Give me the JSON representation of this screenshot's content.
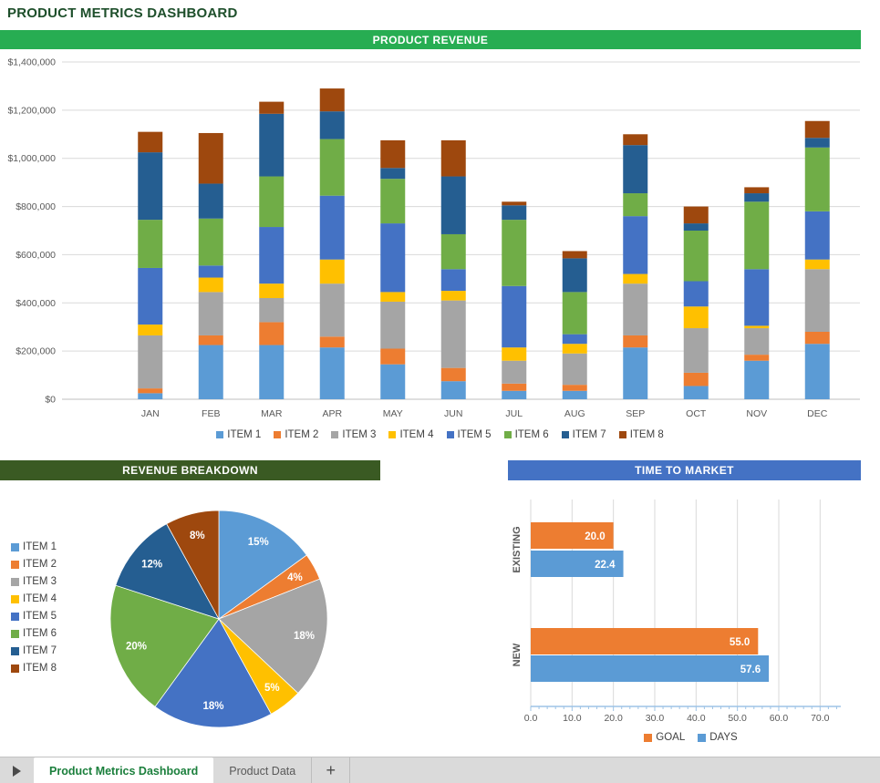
{
  "title": "PRODUCT METRICS DASHBOARD",
  "banners": {
    "revenue": "PRODUCT REVENUE",
    "breakdown": "REVENUE BREAKDOWN",
    "market": "TIME TO MARKET"
  },
  "colors": {
    "title_text": "#1E4F2B",
    "revenue_banner_bg": "#27AD52",
    "breakdown_banner_bg": "#3A5A23",
    "market_banner_bg": "#4472C4",
    "banner_text": "#FFFFFF",
    "axis_text": "#595959",
    "legend_text": "#404040",
    "gridline": "#D9D9D9",
    "axis_line": "#BFBFBF",
    "market_axis_line": "#9DC3E6",
    "data_label_text": "#FFFFFF",
    "active_tab_text": "#1B7F3C",
    "inactive_tab_text": "#595959"
  },
  "items": [
    {
      "label": "ITEM 1",
      "color": "#5B9BD5"
    },
    {
      "label": "ITEM 2",
      "color": "#ED7D31"
    },
    {
      "label": "ITEM 3",
      "color": "#A5A5A5"
    },
    {
      "label": "ITEM 4",
      "color": "#FFC000"
    },
    {
      "label": "ITEM 5",
      "color": "#4472C4"
    },
    {
      "label": "ITEM 6",
      "color": "#70AD47"
    },
    {
      "label": "ITEM 7",
      "color": "#255E91"
    },
    {
      "label": "ITEM 8",
      "color": "#9E480E"
    }
  ],
  "chart_data": [
    {
      "id": "product-revenue",
      "type": "bar",
      "stacked": true,
      "title": "PRODUCT REVENUE",
      "categories": [
        "JAN",
        "FEB",
        "MAR",
        "APR",
        "MAY",
        "JUN",
        "JUL",
        "AUG",
        "SEP",
        "OCT",
        "NOV",
        "DEC"
      ],
      "series": [
        {
          "name": "ITEM 1",
          "color": "#5B9BD5",
          "values": [
            25000,
            225000,
            225000,
            215000,
            145000,
            75000,
            35000,
            35000,
            215000,
            55000,
            160000,
            230000
          ]
        },
        {
          "name": "ITEM 2",
          "color": "#ED7D31",
          "values": [
            20000,
            40000,
            95000,
            45000,
            65000,
            55000,
            30000,
            25000,
            50000,
            55000,
            25000,
            50000
          ]
        },
        {
          "name": "ITEM 3",
          "color": "#A5A5A5",
          "values": [
            220000,
            180000,
            100000,
            220000,
            195000,
            280000,
            95000,
            130000,
            215000,
            185000,
            110000,
            260000
          ]
        },
        {
          "name": "ITEM 4",
          "color": "#FFC000",
          "values": [
            45000,
            60000,
            60000,
            100000,
            40000,
            40000,
            55000,
            40000,
            40000,
            90000,
            10000,
            40000
          ]
        },
        {
          "name": "ITEM 5",
          "color": "#4472C4",
          "values": [
            235000,
            50000,
            235000,
            265000,
            285000,
            90000,
            255000,
            40000,
            240000,
            105000,
            235000,
            200000
          ]
        },
        {
          "name": "ITEM 6",
          "color": "#70AD47",
          "values": [
            200000,
            195000,
            210000,
            235000,
            185000,
            145000,
            275000,
            175000,
            95000,
            210000,
            280000,
            265000
          ]
        },
        {
          "name": "ITEM 7",
          "color": "#255E91",
          "values": [
            280000,
            145000,
            260000,
            115000,
            45000,
            240000,
            60000,
            140000,
            200000,
            30000,
            35000,
            40000
          ]
        },
        {
          "name": "ITEM 8",
          "color": "#9E480E",
          "values": [
            85000,
            210000,
            50000,
            95000,
            115000,
            150000,
            15000,
            30000,
            45000,
            70000,
            25000,
            70000
          ]
        }
      ],
      "ylim": [
        0,
        1400000
      ],
      "ytick_step": 200000,
      "ytick_labels": [
        "$0",
        "$200,000",
        "$400,000",
        "$600,000",
        "$800,000",
        "$1,000,000",
        "$1,200,000",
        "$1,400,000"
      ],
      "grid": true,
      "legend_position": "bottom"
    },
    {
      "id": "revenue-breakdown",
      "type": "pie",
      "title": "REVENUE BREAKDOWN",
      "labels": [
        "ITEM 1",
        "ITEM 2",
        "ITEM 3",
        "ITEM 4",
        "ITEM 5",
        "ITEM 6",
        "ITEM 7",
        "ITEM 8"
      ],
      "values": [
        15,
        4,
        18,
        5,
        18,
        20,
        12,
        8
      ],
      "slice_labels": [
        "15%",
        "4%",
        "18%",
        "5%",
        "18%",
        "20%",
        "12%",
        "8%"
      ],
      "colors": [
        "#5B9BD5",
        "#ED7D31",
        "#A5A5A5",
        "#FFC000",
        "#4472C4",
        "#70AD47",
        "#255E91",
        "#9E480E"
      ],
      "legend_position": "left"
    },
    {
      "id": "time-to-market",
      "type": "bar",
      "orientation": "horizontal",
      "title": "TIME TO MARKET",
      "categories": [
        "EXISTING",
        "NEW"
      ],
      "series": [
        {
          "name": "GOAL",
          "color": "#ED7D31",
          "values": [
            20.0,
            55.0
          ]
        },
        {
          "name": "DAYS",
          "color": "#5B9BD5",
          "values": [
            22.4,
            57.6
          ]
        }
      ],
      "data_labels": [
        [
          "20.0",
          "55.0"
        ],
        [
          "22.4",
          "57.6"
        ]
      ],
      "xlim": [
        0,
        75
      ],
      "xticks": [
        0,
        10,
        20,
        30,
        40,
        50,
        60,
        70
      ],
      "xtick_labels": [
        "0.0",
        "10.0",
        "20.0",
        "30.0",
        "40.0",
        "50.0",
        "60.0",
        "70.0"
      ],
      "grid": true,
      "legend_position": "bottom"
    }
  ],
  "tabbar": {
    "scroll_right_icon": "right-triangle",
    "tabs": [
      {
        "label": "Product Metrics Dashboard",
        "active": true
      },
      {
        "label": "Product Data",
        "active": false
      }
    ],
    "add_button": "+"
  }
}
